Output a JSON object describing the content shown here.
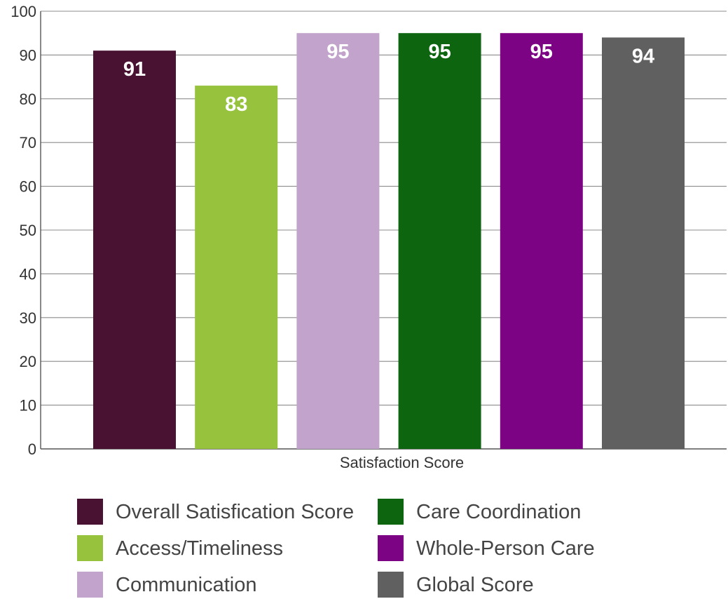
{
  "chart_data": {
    "type": "bar",
    "title": "",
    "xlabel": "",
    "ylabel": "",
    "categories": [
      "Satisfaction Score"
    ],
    "ylim": [
      0,
      100
    ],
    "yticks": [
      0,
      10,
      20,
      30,
      40,
      50,
      60,
      70,
      80,
      90,
      100
    ],
    "grid": true,
    "legend_position": "bottom",
    "series": [
      {
        "name": "Overall Satisfication Score",
        "values": [
          91
        ],
        "label": "91",
        "color": "#4a1232"
      },
      {
        "name": "Access/Timeliness",
        "values": [
          83
        ],
        "label": "83",
        "color": "#96c23d"
      },
      {
        "name": "Communication",
        "values": [
          95
        ],
        "label": "95",
        "color": "#c2a3cc"
      },
      {
        "name": "Care Coordination",
        "values": [
          95
        ],
        "label": "95",
        "color": "#0d6510"
      },
      {
        "name": "Whole-Person Care",
        "values": [
          95
        ],
        "label": "95",
        "color": "#7c0383"
      },
      {
        "name": "Global Score",
        "values": [
          94
        ],
        "label": "94",
        "color": "#606060"
      }
    ]
  }
}
